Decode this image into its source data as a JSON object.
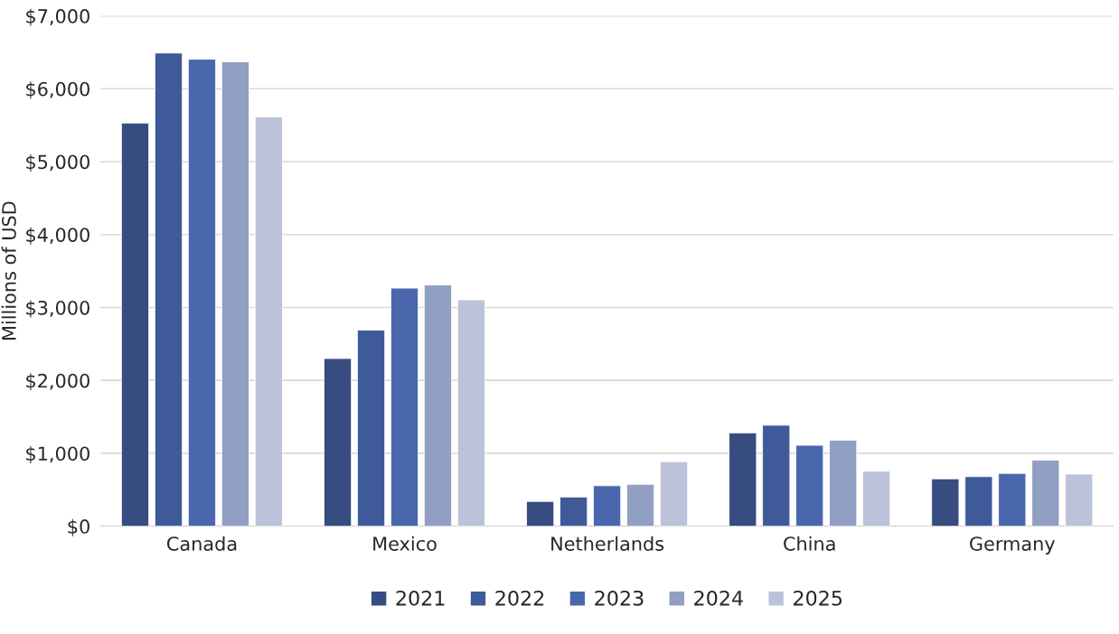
{
  "chart_data": {
    "type": "bar",
    "ylabel": "Millions of USD",
    "categories": [
      "Canada",
      "Mexico",
      "Netherlands",
      "China",
      "Germany"
    ],
    "series": [
      {
        "name": "2021",
        "color": "#374c80",
        "values": [
          5530,
          2300,
          340,
          1280,
          650
        ]
      },
      {
        "name": "2022",
        "color": "#3f5a98",
        "values": [
          6490,
          2690,
          400,
          1385,
          680
        ]
      },
      {
        "name": "2023",
        "color": "#4a67ad",
        "values": [
          6405,
          3265,
          555,
          1110,
          725
        ]
      },
      {
        "name": "2024",
        "color": "#919fc3",
        "values": [
          6370,
          3310,
          575,
          1180,
          905
        ]
      },
      {
        "name": "2025",
        "color": "#bcc2d9",
        "values": [
          5615,
          3105,
          885,
          755,
          715
        ]
      }
    ],
    "ylim": [
      0,
      7000
    ],
    "yticks": [
      {
        "value": 0,
        "label": "$0"
      },
      {
        "value": 1000,
        "label": "$1,000"
      },
      {
        "value": 2000,
        "label": "$2,000"
      },
      {
        "value": 3000,
        "label": "$3,000"
      },
      {
        "value": 4000,
        "label": "$4,000"
      },
      {
        "value": 5000,
        "label": "$5,000"
      },
      {
        "value": 6000,
        "label": "$6,000"
      },
      {
        "value": 7000,
        "label": "$7,000"
      }
    ],
    "grid": "y",
    "legend": "bottom"
  }
}
